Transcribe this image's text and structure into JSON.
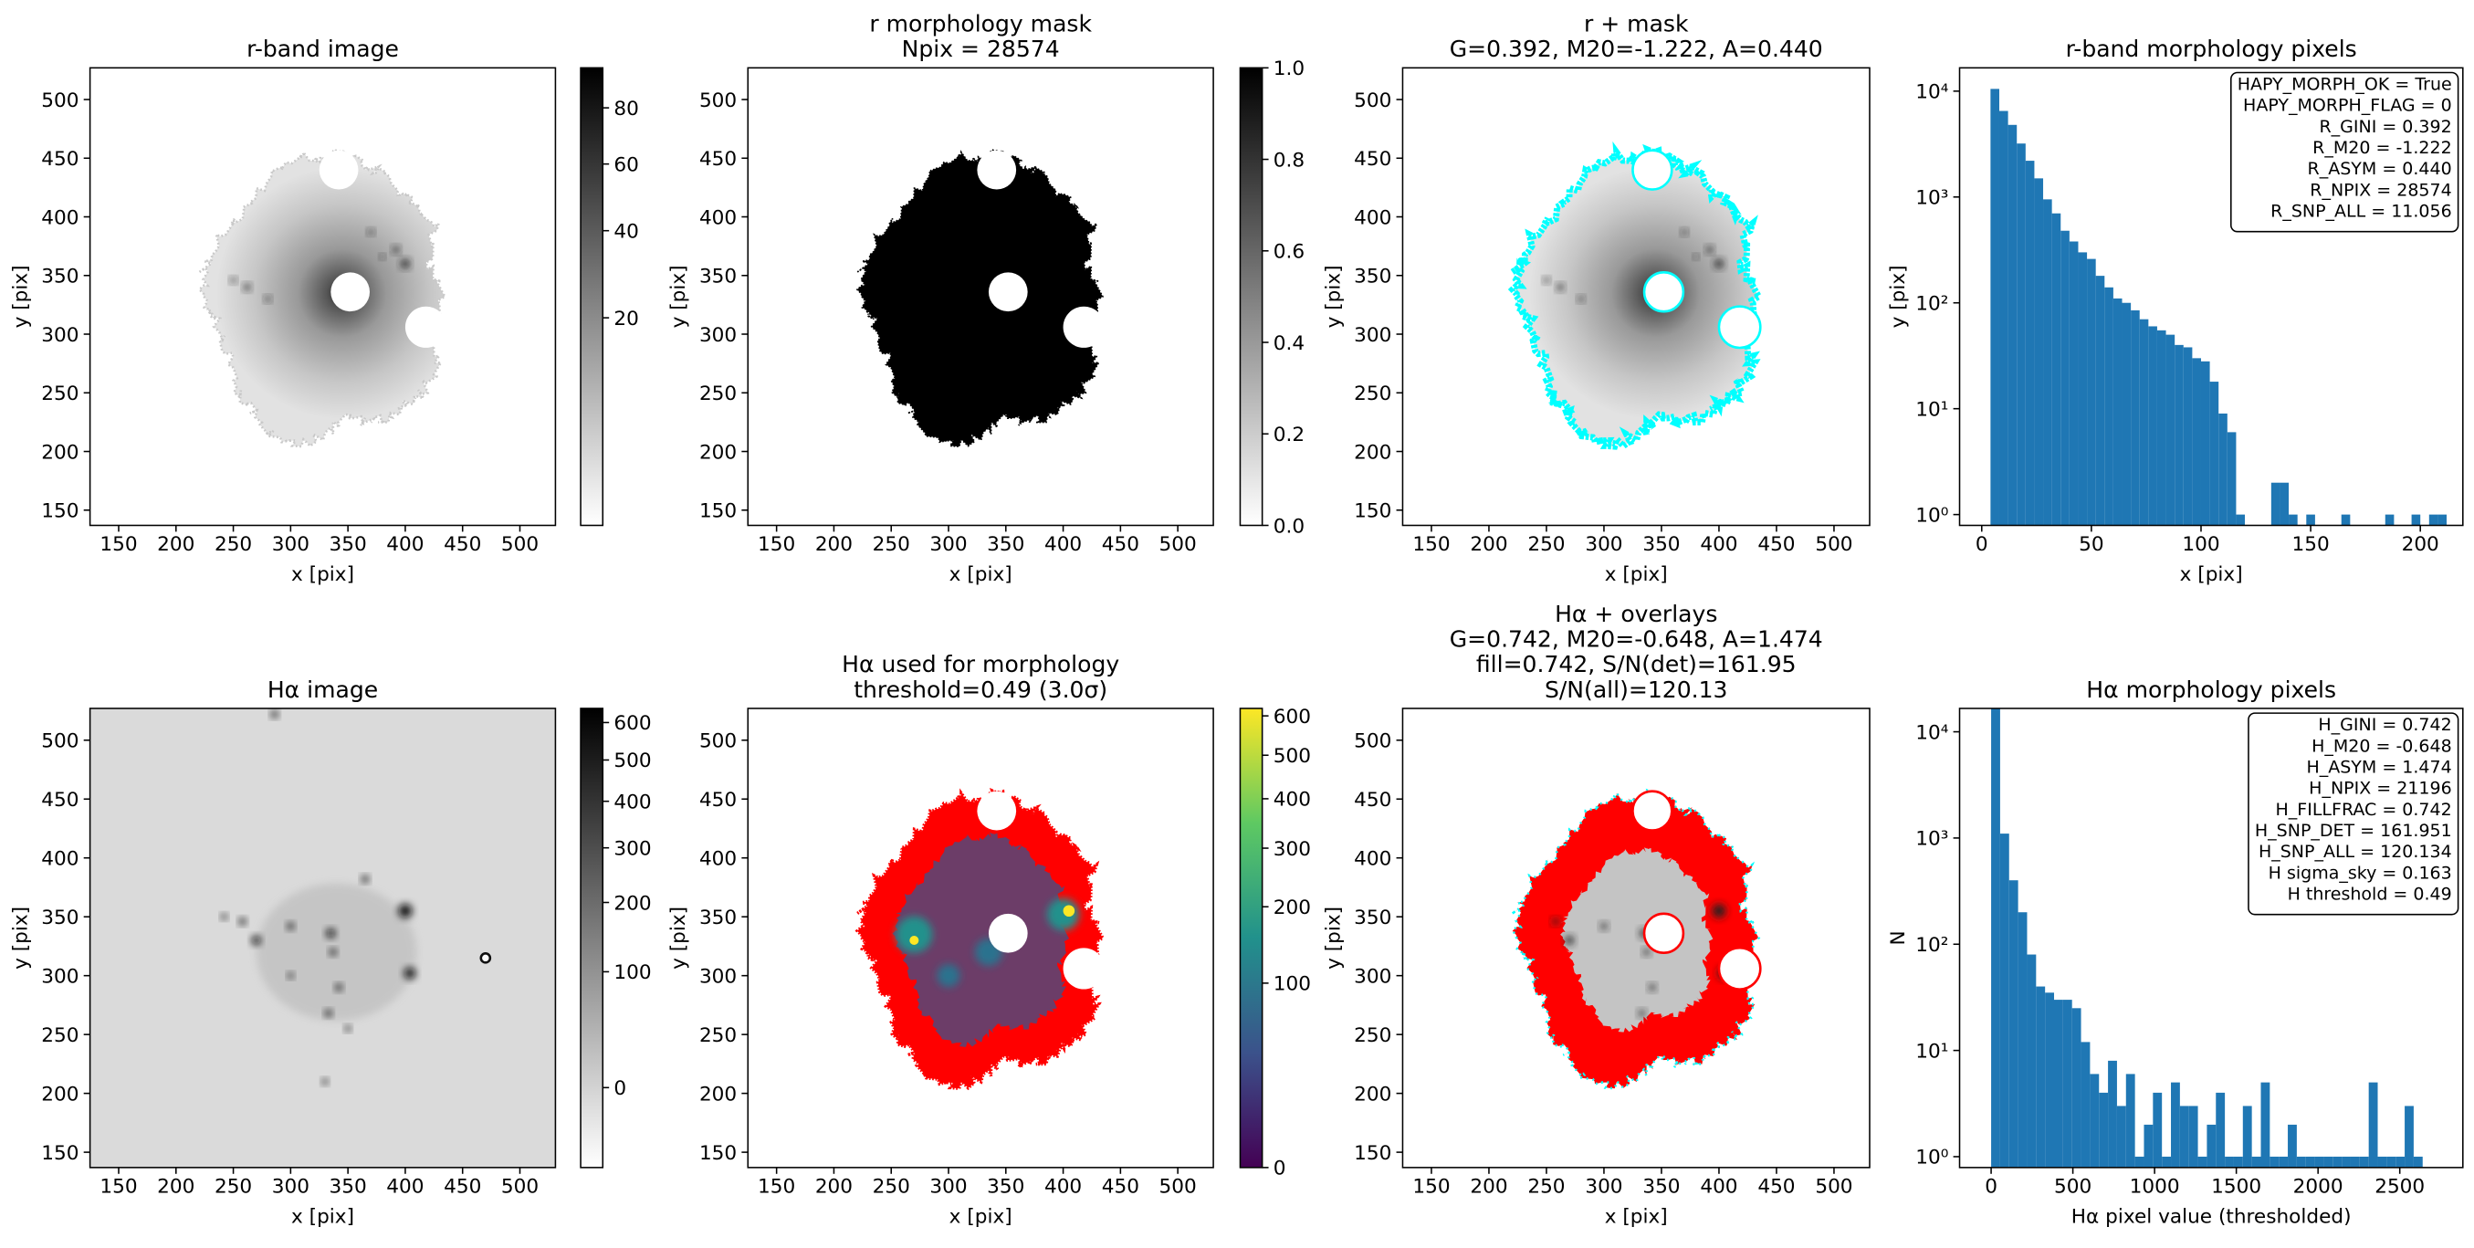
{
  "chart_data": [
    {
      "type": "image",
      "title": [
        "r-band image"
      ],
      "xlabel": "x [pix]",
      "ylabel": "y [pix]",
      "xlim": [
        125,
        531
      ],
      "ylim": [
        137,
        527
      ],
      "xticks": [
        150,
        200,
        250,
        300,
        350,
        400,
        450,
        500
      ],
      "yticks": [
        150,
        200,
        250,
        300,
        350,
        400,
        450,
        500
      ],
      "colorbar": {
        "cmap": "gray_r",
        "scale": "sqrt",
        "lim": [
          0.3,
          96
        ],
        "ticks": [
          20,
          40,
          60,
          80
        ]
      }
    },
    {
      "type": "image",
      "title": [
        "r morphology mask",
        "Npix = 28574"
      ],
      "xlabel": "x [pix]",
      "ylabel": "y [pix]",
      "xlim": [
        125,
        531
      ],
      "ylim": [
        137,
        527
      ],
      "xticks": [
        150,
        200,
        250,
        300,
        350,
        400,
        450,
        500
      ],
      "yticks": [
        150,
        200,
        250,
        300,
        350,
        400,
        450,
        500
      ],
      "colorbar": {
        "cmap": "gray_r",
        "scale": "linear",
        "lim": [
          0,
          1
        ],
        "ticks": [
          {
            "value": 0,
            "label": "0.0"
          },
          0.2,
          0.4,
          0.6,
          0.8,
          {
            "value": 1,
            "label": "1.0"
          }
        ]
      }
    },
    {
      "type": "image",
      "title": [
        "r + mask",
        "G=0.392, M20=-1.222, A=0.440"
      ],
      "xlabel": "x [pix]",
      "ylabel": "y [pix]",
      "xlim": [
        125,
        531
      ],
      "ylim": [
        137,
        527
      ],
      "xticks": [
        150,
        200,
        250,
        300,
        350,
        400,
        450,
        500
      ],
      "yticks": [
        150,
        200,
        250,
        300,
        350,
        400,
        450,
        500
      ],
      "overlay_color": "#00ffff"
    },
    {
      "type": "histogram",
      "title": [
        "r-band morphology pixels"
      ],
      "xlabel": "x [pix]",
      "ylabel": "y [pix]",
      "xlim": [
        -10.1,
        219.4
      ],
      "ylim": [
        0.79,
        16600
      ],
      "log_y": true,
      "xticks": [
        0,
        50,
        100,
        150,
        200
      ],
      "yticks": [
        {
          "value": 1,
          "label": "10⁰"
        },
        {
          "value": 10,
          "label": "10¹"
        },
        {
          "value": 100,
          "label": "10²"
        },
        {
          "value": 1000,
          "label": "10³"
        },
        {
          "value": 10000,
          "label": "10⁴"
        }
      ],
      "color": "#1f77b4",
      "bins": [
        4,
        8,
        12,
        16,
        20,
        24,
        28,
        32,
        36,
        40,
        44,
        48,
        52,
        56,
        60,
        64,
        68,
        72,
        76,
        80,
        84,
        88,
        92,
        96,
        100,
        104,
        108,
        112,
        116,
        120,
        124,
        128,
        132,
        136,
        140,
        144,
        148,
        152,
        156,
        160,
        164,
        168,
        172,
        176,
        180,
        184,
        188,
        192,
        196,
        200,
        204,
        208,
        212
      ],
      "values": [
        10500,
        6500,
        4800,
        3200,
        2200,
        1500,
        950,
        700,
        480,
        380,
        300,
        260,
        180,
        140,
        110,
        100,
        85,
        70,
        60,
        55,
        50,
        40,
        38,
        30,
        28,
        18,
        9,
        6,
        1,
        0,
        0,
        0,
        2,
        2,
        1,
        0,
        1,
        0,
        0,
        0,
        1,
        0,
        0,
        0,
        0,
        1,
        0,
        0,
        1,
        0,
        1,
        1
      ],
      "annotation": [
        "HAPY_MORPH_OK = True",
        "HAPY_MORPH_FLAG = 0",
        "R_GINI = 0.392",
        "R_M20 = -1.222",
        "R_ASYM = 0.440",
        "R_NPIX = 28574",
        "R_SNP_ALL = 11.056"
      ]
    },
    {
      "type": "image",
      "title": [
        "Hα image"
      ],
      "xlabel": "x [pix]",
      "ylabel": "y [pix]",
      "xlim": [
        125,
        531
      ],
      "ylim": [
        137,
        527
      ],
      "xticks": [
        150,
        200,
        250,
        300,
        350,
        400,
        450,
        500
      ],
      "yticks": [
        150,
        200,
        250,
        300,
        350,
        400,
        450,
        500
      ],
      "colorbar": {
        "cmap": "gray_r",
        "scale": "sqrt",
        "lim": [
          -20,
          640
        ],
        "ticks": [
          0,
          100,
          200,
          300,
          400,
          500,
          600
        ]
      }
    },
    {
      "type": "image",
      "title": [
        "Hα used for morphology",
        "threshold=0.49 (3.0σ)"
      ],
      "xlabel": "x [pix]",
      "ylabel": "y [pix]",
      "xlim": [
        125,
        531
      ],
      "ylim": [
        137,
        527
      ],
      "xticks": [
        150,
        200,
        250,
        300,
        350,
        400,
        450,
        500
      ],
      "yticks": [
        150,
        200,
        250,
        300,
        350,
        400,
        450,
        500
      ],
      "overlay_color": "#ff0000",
      "colorbar": {
        "cmap": "viridis",
        "scale": "sqrt",
        "lim": [
          0,
          620
        ],
        "ticks": [
          0,
          100,
          200,
          300,
          400,
          500,
          600
        ]
      }
    },
    {
      "type": "image",
      "title": [
        "Hα + overlays",
        "G=0.742, M20=-0.648, A=1.474",
        "fill=0.742, S/N(det)=161.95",
        "S/N(all)=120.13"
      ],
      "xlabel": "x [pix]",
      "ylabel": "y [pix]",
      "xlim": [
        125,
        531
      ],
      "ylim": [
        137,
        527
      ],
      "xticks": [
        150,
        200,
        250,
        300,
        350,
        400,
        450,
        500
      ],
      "yticks": [
        150,
        200,
        250,
        300,
        350,
        400,
        450,
        500
      ],
      "overlay_color": "#ff0000"
    },
    {
      "type": "histogram",
      "title": [
        "Hα morphology pixels"
      ],
      "xlabel": "Hα pixel value (thresholded)",
      "ylabel": "N",
      "xlim": [
        -193,
        2886
      ],
      "ylim": [
        0.79,
        16600
      ],
      "log_y": true,
      "xticks": [
        0,
        500,
        1000,
        1500,
        2000,
        2500
      ],
      "yticks": [
        {
          "value": 1,
          "label": "10⁰"
        },
        {
          "value": 10,
          "label": "10¹"
        },
        {
          "value": 100,
          "label": "10²"
        },
        {
          "value": 1000,
          "label": "10³"
        },
        {
          "value": 10000,
          "label": "10⁴"
        }
      ],
      "color": "#1f77b4",
      "bins": [
        0,
        55,
        110,
        165,
        220,
        275,
        330,
        385,
        440,
        495,
        550,
        605,
        660,
        715,
        770,
        825,
        880,
        935,
        990,
        1045,
        1100,
        1155,
        1210,
        1265,
        1320,
        1375,
        1430,
        1485,
        1540,
        1595,
        1650,
        1705,
        1760,
        1815,
        1870,
        1925,
        1980,
        2035,
        2090,
        2145,
        2200,
        2255,
        2310,
        2365,
        2420,
        2475,
        2530,
        2585,
        2640
      ],
      "values": [
        25000,
        1100,
        400,
        200,
        80,
        40,
        35,
        30,
        30,
        25,
        12,
        6,
        4,
        8,
        3,
        6,
        1,
        2,
        4,
        1,
        5,
        3,
        3,
        1,
        2,
        4,
        1,
        1,
        3,
        1,
        5,
        1,
        1,
        2,
        1,
        1,
        1,
        1,
        1,
        1,
        1,
        1,
        5,
        1,
        1,
        1,
        3,
        1
      ],
      "annotation": [
        "H_GINI = 0.742",
        "H_M20 = -0.648",
        "H_ASYM = 1.474",
        "H_NPIX = 21196",
        "H_FILLFRAC = 0.742",
        "H_SNP_DET = 161.951",
        "H_SNP_ALL = 120.134",
        "H sigma_sky = 0.163",
        "H threshold = 0.49"
      ]
    }
  ]
}
